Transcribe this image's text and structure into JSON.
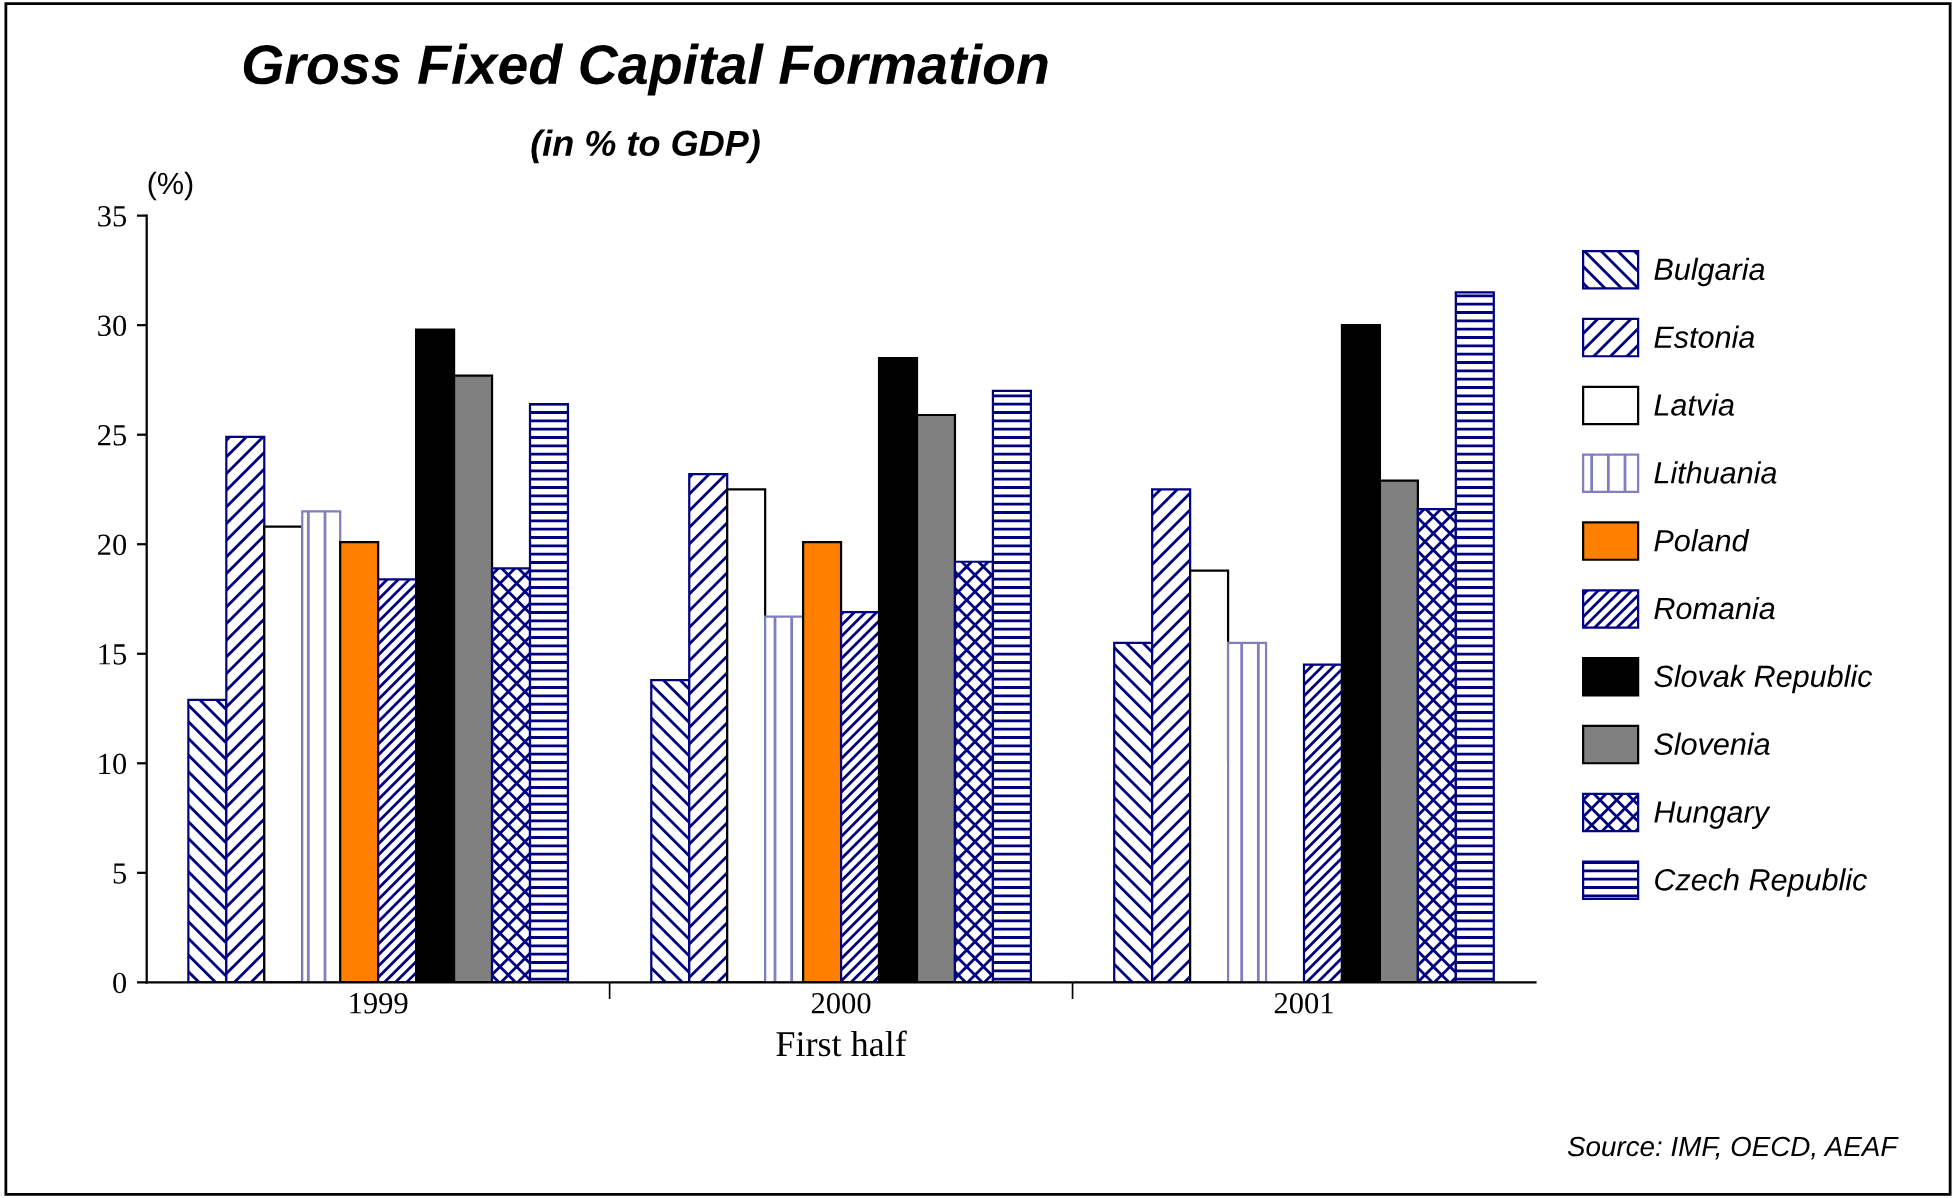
{
  "chart_data": {
    "type": "bar",
    "title": "Gross Fixed Capital Formation",
    "subtitle": "(in % to GDP)",
    "ylabel": "(%)",
    "xlabel": "First half",
    "categories": [
      "1999",
      "2000",
      "2001"
    ],
    "series": [
      {
        "name": "Bulgaria",
        "color": "#000080",
        "values": [
          12.9,
          13.8,
          15.5
        ]
      },
      {
        "name": "Estonia",
        "color": "#000080",
        "values": [
          24.9,
          23.2,
          22.5
        ]
      },
      {
        "name": "Latvia",
        "color": "#ffffff",
        "values": [
          20.8,
          22.5,
          18.8
        ]
      },
      {
        "name": "Lithuania",
        "color": "#8080c0",
        "values": [
          21.5,
          16.7,
          15.5
        ]
      },
      {
        "name": "Poland",
        "color": "#ff8000",
        "values": [
          20.1,
          20.1,
          null
        ]
      },
      {
        "name": "Romania",
        "color": "#000080",
        "values": [
          18.4,
          16.9,
          14.5
        ]
      },
      {
        "name": "Slovak Republic",
        "color": "#000000",
        "values": [
          29.8,
          28.5,
          30.0
        ]
      },
      {
        "name": "Slovenia",
        "color": "#808080",
        "values": [
          27.7,
          25.9,
          22.9
        ]
      },
      {
        "name": "Hungary",
        "color": "#000080",
        "values": [
          18.9,
          19.2,
          21.6
        ]
      },
      {
        "name": "Czech Republic",
        "color": "#000080",
        "values": [
          26.4,
          27.0,
          31.5
        ]
      }
    ],
    "ylim": [
      0,
      35
    ],
    "yticks": [
      0,
      5,
      10,
      15,
      20,
      25,
      30,
      35
    ],
    "grid": false,
    "legend": "right",
    "annotations": [
      "Source: IMF, OECD, AEAF"
    ]
  }
}
